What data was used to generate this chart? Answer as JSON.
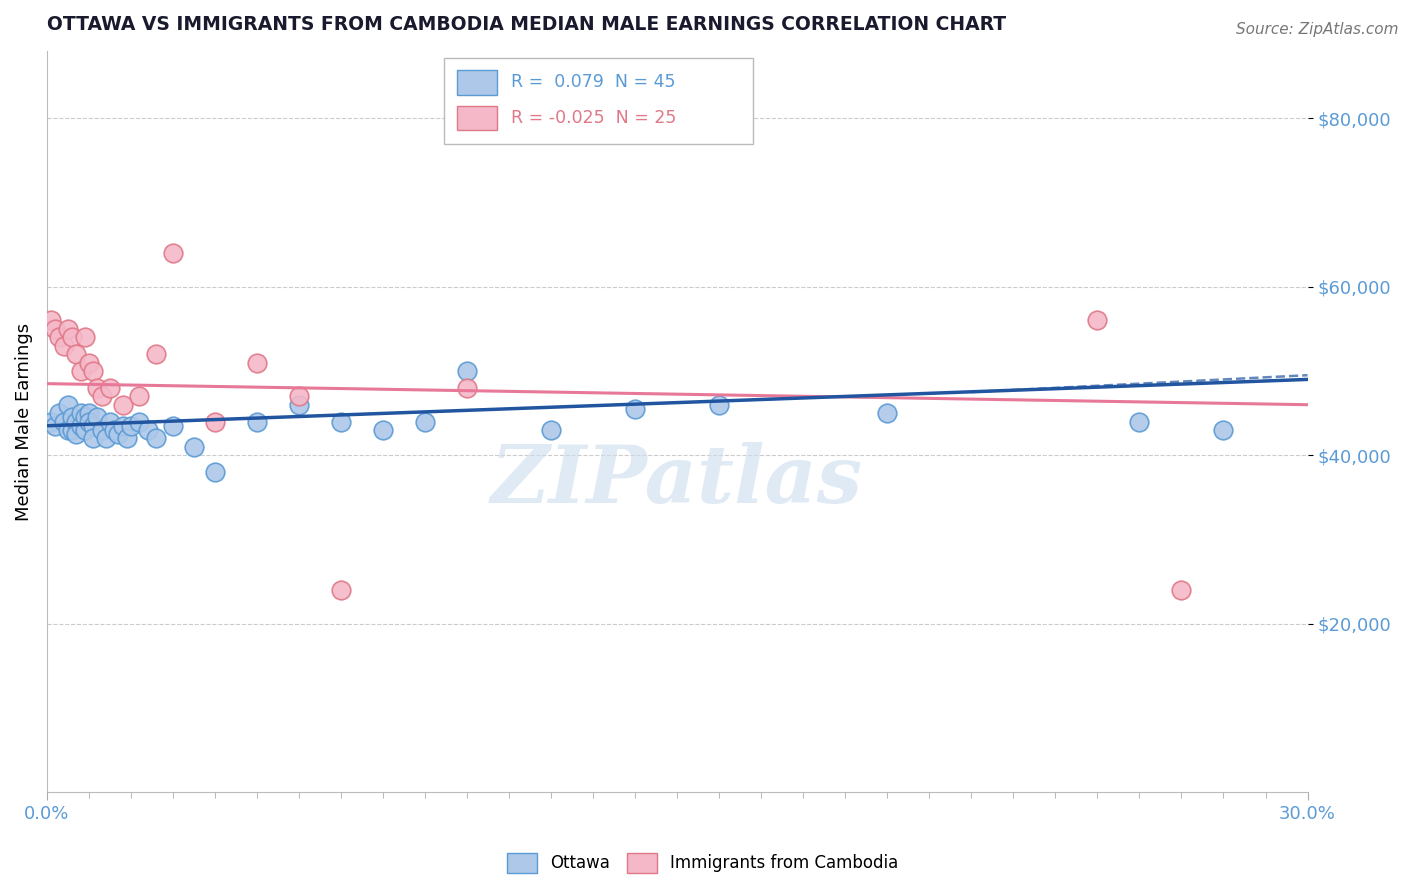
{
  "title": "OTTAWA VS IMMIGRANTS FROM CAMBODIA MEDIAN MALE EARNINGS CORRELATION CHART",
  "source": "Source: ZipAtlas.com",
  "ylabel": "Median Male Earnings",
  "xmin": 0.0,
  "xmax": 0.3,
  "ymin": 0,
  "ymax": 88000,
  "yticks": [
    20000,
    40000,
    60000,
    80000
  ],
  "ytick_labels": [
    "$20,000",
    "$40,000",
    "$60,000",
    "$80,000"
  ],
  "xtick_labels_shown": [
    "0.0%",
    "30.0%"
  ],
  "xtick_positions_shown": [
    0.0,
    0.3
  ],
  "blue_R": 0.079,
  "blue_N": 45,
  "pink_R": -0.025,
  "pink_N": 25,
  "blue_color": "#adc8e8",
  "blue_edge": "#5b9bd5",
  "pink_color": "#f4b8c8",
  "pink_edge": "#e07888",
  "blue_line_color": "#2255a0",
  "pink_line_color": "#e87898",
  "watermark": "ZIPatlas",
  "legend_label_blue": "Ottawa",
  "legend_label_pink": "Immigrants from Cambodia",
  "blue_scatter_x": [
    0.001,
    0.002,
    0.003,
    0.004,
    0.005,
    0.005,
    0.006,
    0.006,
    0.007,
    0.007,
    0.008,
    0.008,
    0.009,
    0.009,
    0.01,
    0.01,
    0.011,
    0.011,
    0.012,
    0.013,
    0.014,
    0.015,
    0.016,
    0.017,
    0.018,
    0.019,
    0.02,
    0.022,
    0.024,
    0.026,
    0.03,
    0.035,
    0.04,
    0.05,
    0.06,
    0.07,
    0.08,
    0.09,
    0.1,
    0.12,
    0.14,
    0.16,
    0.2,
    0.26,
    0.28
  ],
  "blue_scatter_y": [
    44000,
    43500,
    45000,
    44000,
    46000,
    43000,
    44500,
    43000,
    44000,
    42500,
    45000,
    43500,
    44500,
    43000,
    45000,
    44000,
    43500,
    42000,
    44500,
    43000,
    42000,
    44000,
    43000,
    42500,
    43500,
    42000,
    43500,
    44000,
    43000,
    42000,
    43500,
    41000,
    38000,
    44000,
    46000,
    44000,
    43000,
    44000,
    50000,
    43000,
    45500,
    46000,
    45000,
    44000,
    43000
  ],
  "pink_scatter_x": [
    0.001,
    0.002,
    0.003,
    0.004,
    0.005,
    0.006,
    0.007,
    0.008,
    0.009,
    0.01,
    0.011,
    0.012,
    0.013,
    0.015,
    0.018,
    0.022,
    0.026,
    0.03,
    0.04,
    0.05,
    0.06,
    0.07,
    0.1,
    0.25,
    0.27
  ],
  "pink_scatter_y": [
    56000,
    55000,
    54000,
    53000,
    55000,
    54000,
    52000,
    50000,
    54000,
    51000,
    50000,
    48000,
    47000,
    48000,
    46000,
    47000,
    52000,
    64000,
    44000,
    51000,
    47000,
    24000,
    48000,
    56000,
    24000
  ],
  "blue_line_x0": 0.0,
  "blue_line_x1": 0.3,
  "blue_line_y0": 43500,
  "blue_line_y1": 49000,
  "pink_line_x0": 0.0,
  "pink_line_x1": 0.3,
  "pink_line_y0": 48500,
  "pink_line_y1": 46000,
  "dashed_line_x0": 0.22,
  "dashed_line_x1": 0.3,
  "dashed_line_y0": 47500,
  "dashed_line_y1": 49500
}
